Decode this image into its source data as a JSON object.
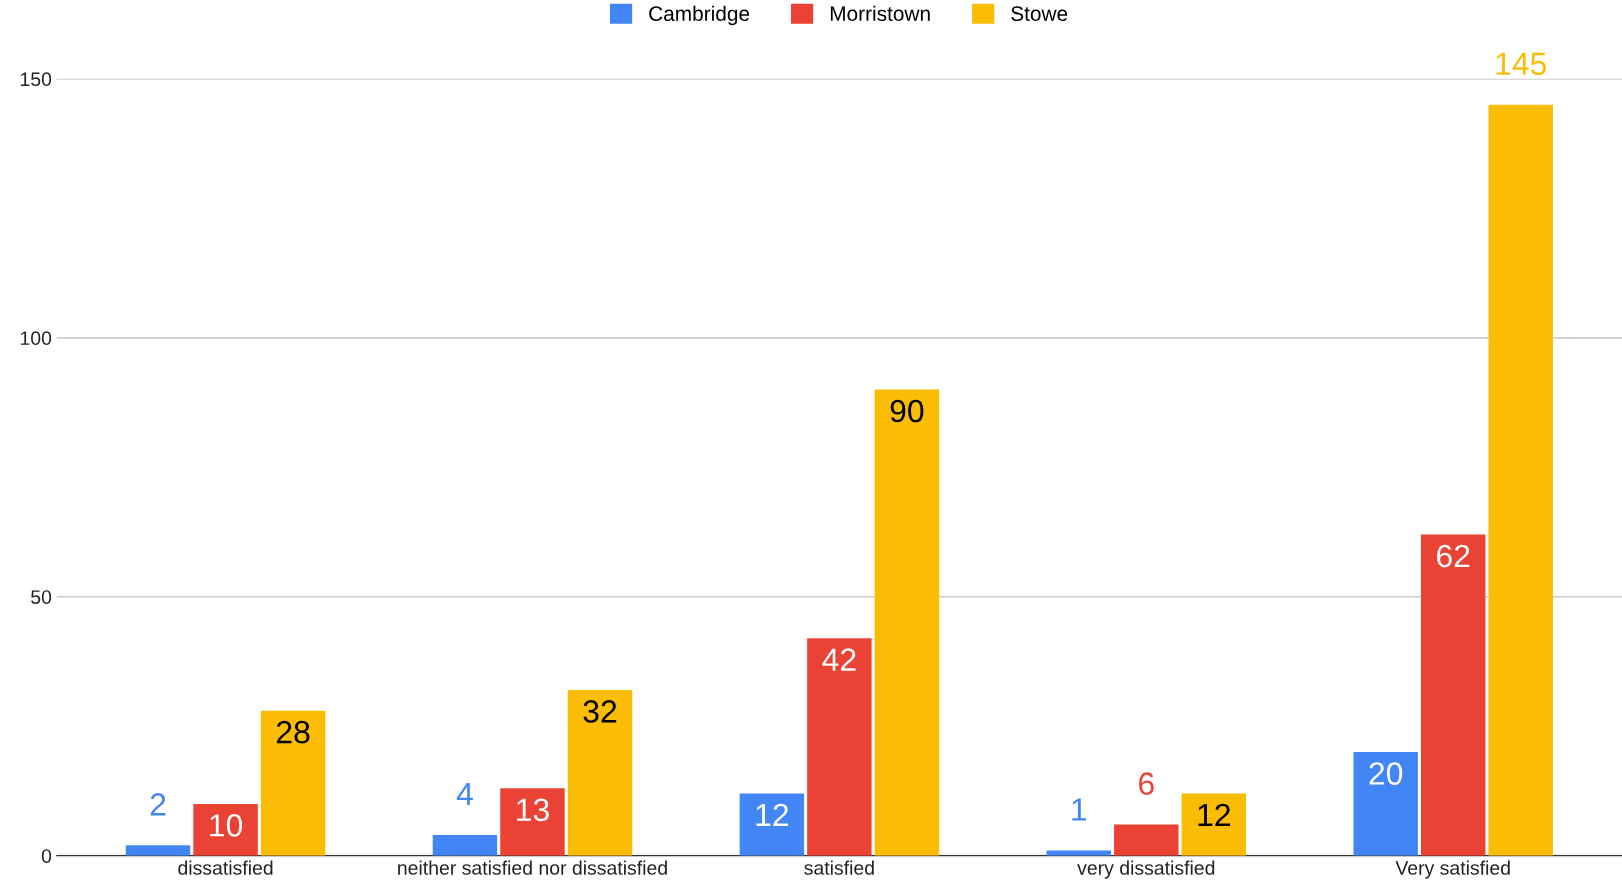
{
  "chart_data": {
    "type": "bar",
    "categories": [
      "dissatisfied",
      "neither satisfied nor dissatisfied",
      "satisfied",
      "very dissatisfied",
      "Very satisfied"
    ],
    "series": [
      {
        "name": "Cambridge",
        "color": "#4285f4",
        "values": [
          2,
          4,
          12,
          1,
          20
        ]
      },
      {
        "name": "Morristown",
        "color": "#ea4335",
        "values": [
          10,
          13,
          42,
          6,
          62
        ]
      },
      {
        "name": "Stowe",
        "color": "#fbbc04",
        "values": [
          28,
          32,
          90,
          12,
          145
        ]
      }
    ],
    "ylim": [
      0,
      150
    ],
    "yticks": [
      0,
      50,
      100,
      150
    ],
    "grid": "y",
    "legend": "top",
    "data_labels": true
  }
}
